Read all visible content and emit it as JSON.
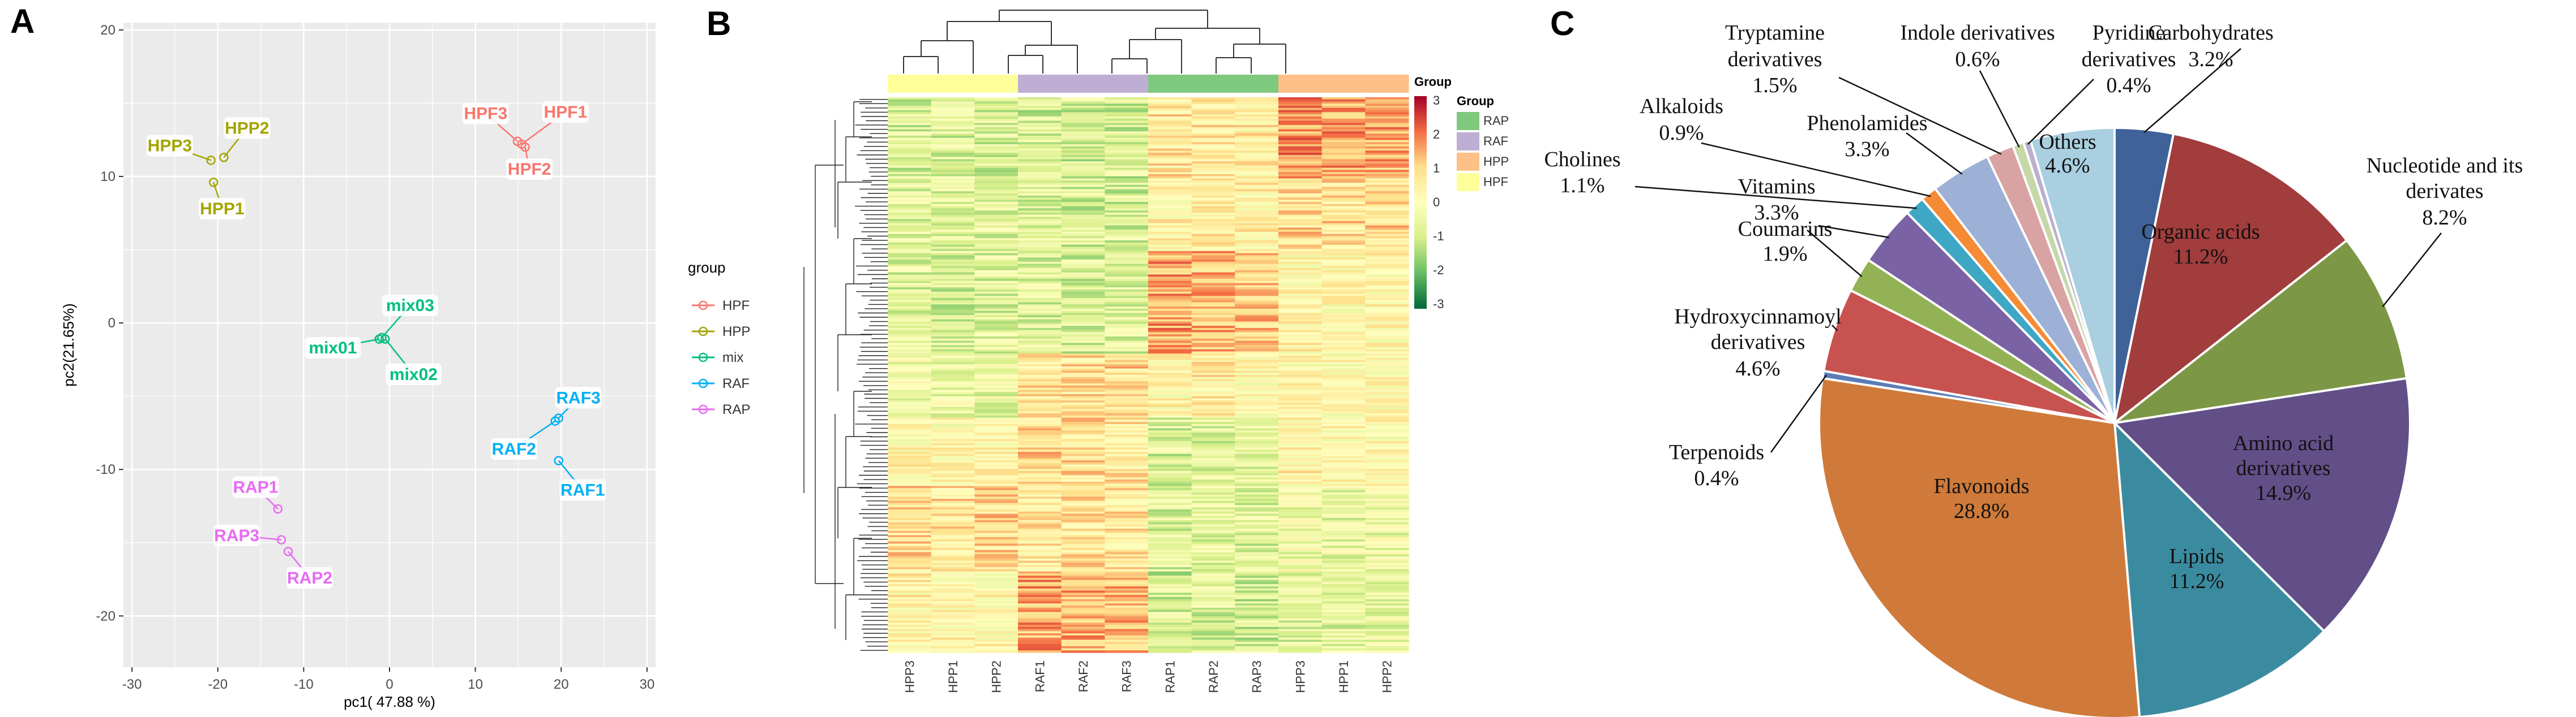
{
  "panel_labels": {
    "a": "A",
    "b": "B",
    "c": "C"
  },
  "chart_data": [
    {
      "type": "scatter",
      "panel": "A",
      "title": "",
      "xlabel": "pc1( 47.88 %)",
      "ylabel": "pc2(21.65%)",
      "xlim": [
        -31,
        31
      ],
      "ylim": [
        -23.5,
        20.5
      ],
      "xticks": [
        -30,
        -20,
        -10,
        0,
        10,
        20,
        30
      ],
      "yticks": [
        20,
        10,
        0,
        -10,
        -20
      ],
      "legend_title": "group",
      "legend": [
        {
          "name": "HPF",
          "color": "#f8766d"
        },
        {
          "name": "HPP",
          "color": "#a3a500"
        },
        {
          "name": "mix",
          "color": "#00bf7d"
        },
        {
          "name": "RAF",
          "color": "#00b0f6"
        },
        {
          "name": "RAP",
          "color": "#e76bf3"
        }
      ],
      "points": [
        {
          "label": "HPF1",
          "group": "HPF",
          "x": 15.4,
          "y": 12.2,
          "lx": 20.5,
          "ly": 14.4
        },
        {
          "label": "HPF2",
          "group": "HPF",
          "x": 15.8,
          "y": 12.0,
          "lx": 16.3,
          "ly": 10.5
        },
        {
          "label": "HPF3",
          "group": "HPF",
          "x": 14.9,
          "y": 12.4,
          "lx": 11.2,
          "ly": 14.3
        },
        {
          "label": "HPP1",
          "group": "HPP",
          "x": -20.5,
          "y": 9.6,
          "lx": -19.5,
          "ly": 7.8
        },
        {
          "label": "HPP2",
          "group": "HPP",
          "x": -19.3,
          "y": 11.3,
          "lx": -16.6,
          "ly": 13.3
        },
        {
          "label": "HPP3",
          "group": "HPP",
          "x": -20.8,
          "y": 11.1,
          "lx": -25.6,
          "ly": 12.1
        },
        {
          "label": "mix01",
          "group": "mix",
          "x": -1.2,
          "y": -1.1,
          "lx": -6.6,
          "ly": -1.7
        },
        {
          "label": "mix02",
          "group": "mix",
          "x": -0.5,
          "y": -1.1,
          "lx": 2.8,
          "ly": -3.5
        },
        {
          "label": "mix03",
          "group": "mix",
          "x": -0.9,
          "y": -1.0,
          "lx": 2.4,
          "ly": 1.2
        },
        {
          "label": "RAF1",
          "group": "RAF",
          "x": 19.7,
          "y": -9.4,
          "lx": 22.5,
          "ly": -11.4
        },
        {
          "label": "RAF2",
          "group": "RAF",
          "x": 19.3,
          "y": -6.7,
          "lx": 14.5,
          "ly": -8.6
        },
        {
          "label": "RAF3",
          "group": "RAF",
          "x": 19.7,
          "y": -6.5,
          "lx": 22.0,
          "ly": -5.1
        },
        {
          "label": "RAP1",
          "group": "RAP",
          "x": -13.0,
          "y": -12.7,
          "lx": -15.6,
          "ly": -11.2
        },
        {
          "label": "RAP2",
          "group": "RAP",
          "x": -11.8,
          "y": -15.6,
          "lx": -9.3,
          "ly": -17.4
        },
        {
          "label": "RAP3",
          "group": "RAP",
          "x": -12.6,
          "y": -14.8,
          "lx": -17.8,
          "ly": -14.5
        }
      ]
    },
    {
      "type": "heatmap",
      "panel": "B",
      "columns": [
        "HPP3",
        "HPP1",
        "HPP2",
        "RAF1",
        "RAF2",
        "RAF3",
        "RAP1",
        "RAP2",
        "RAP3",
        "HPP3",
        "HPP1",
        "HPP2"
      ],
      "column_groups": [
        "HPF",
        "HPF",
        "HPF",
        "RAF",
        "RAF",
        "RAF",
        "RAP",
        "RAP",
        "RAP",
        "HPP",
        "HPP",
        "HPP"
      ],
      "annotation_label": "Group",
      "group_legend_title": "Group",
      "group_legend": [
        {
          "name": "RAP",
          "color": "#7fc97f"
        },
        {
          "name": "RAF",
          "color": "#beaed4"
        },
        {
          "name": "HPP",
          "color": "#fdc086"
        },
        {
          "name": "HPF",
          "color": "#ffff99"
        }
      ],
      "scale_range": [
        -3,
        3
      ],
      "scale_ticks": [
        3,
        2,
        1,
        0,
        -1,
        -2,
        -3
      ],
      "scale_colors": [
        "#006837",
        "#66bd63",
        "#d9ef8b",
        "#ffffbf",
        "#fee08b",
        "#f46d43",
        "#a50026"
      ]
    },
    {
      "type": "pie",
      "panel": "C",
      "slices": [
        {
          "label": "Carbohydrates",
          "value": 3.2,
          "pct": "3.2%",
          "color": "#3f6299"
        },
        {
          "label": "Organic acids",
          "value": 11.2,
          "pct": "11.2%",
          "color": "#a13d3c"
        },
        {
          "label": "Nucleotide and its derivates",
          "value": 8.2,
          "pct": "8.2%",
          "color": "#7c9745"
        },
        {
          "label": "Amino acid derivatives",
          "value": 14.9,
          "pct": "14.9%",
          "color": "#624f88"
        },
        {
          "label": "Lipids",
          "value": 11.2,
          "pct": "11.2%",
          "color": "#3b8ba0"
        },
        {
          "label": "Flavonoids",
          "value": 28.8,
          "pct": "28.8%",
          "color": "#cf7a3a"
        },
        {
          "label": "Terpenoids",
          "value": 0.4,
          "pct": "0.4%",
          "color": "#5a7db6"
        },
        {
          "label": "Hydroxycinnamoyl derivatives",
          "value": 4.6,
          "pct": "4.6%",
          "color": "#c85250"
        },
        {
          "label": "Coumarins",
          "value": 1.9,
          "pct": "1.9%",
          "color": "#93b256"
        },
        {
          "label": "Vitamins",
          "value": 3.3,
          "pct": "3.3%",
          "color": "#7a62a4"
        },
        {
          "label": "Cholines",
          "value": 1.1,
          "pct": "1.1%",
          "color": "#3ea7c4"
        },
        {
          "label": "Alkaloids",
          "value": 0.9,
          "pct": "0.9%",
          "color": "#f58b34"
        },
        {
          "label": "Phenolamides",
          "value": 3.3,
          "pct": "3.3%",
          "color": "#9db0d6"
        },
        {
          "label": "Tryptamine derivatives",
          "value": 1.5,
          "pct": "1.5%",
          "color": "#d9a3a3"
        },
        {
          "label": "Indole derivatives",
          "value": 0.6,
          "pct": "0.6%",
          "color": "#c6d7a8"
        },
        {
          "label": "Pyridine derivatives",
          "value": 0.4,
          "pct": "0.4%",
          "color": "#bbb0cf"
        },
        {
          "label": "Others",
          "value": 4.6,
          "pct": "4.6%",
          "color": "#a9cfe0"
        }
      ]
    }
  ]
}
